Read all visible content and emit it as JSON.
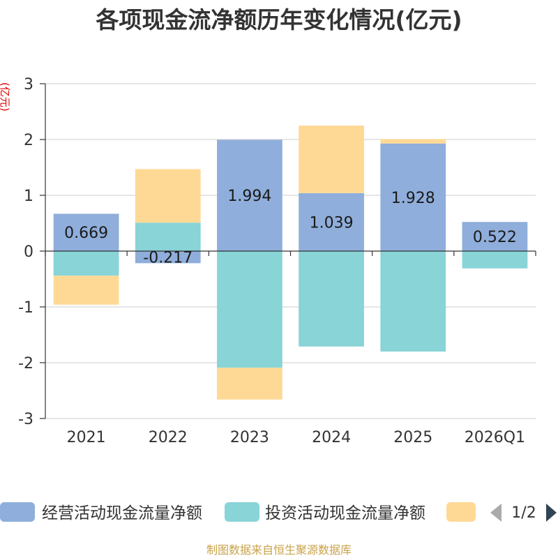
{
  "chart_data": {
    "type": "bar",
    "stacked": true,
    "title": "各项现金流净额历年变化情况(亿元)",
    "xlabel": "",
    "ylabel": "(亿元)",
    "categories": [
      "2021",
      "2022",
      "2023",
      "2024",
      "2025",
      "2026Q1"
    ],
    "ylim": [
      -3,
      3
    ],
    "yticks": [
      -3,
      -2,
      -1,
      0,
      1,
      2,
      3
    ],
    "grid": true,
    "legend_position": "bottom",
    "series": [
      {
        "name": "经营活动现金流量净额",
        "color": "#8faedb",
        "show_labels": true,
        "values": [
          0.669,
          -0.217,
          1.994,
          1.039,
          1.928,
          0.522
        ]
      },
      {
        "name": "投资活动现金流量净额",
        "color": "#88d4d7",
        "show_labels": false,
        "values": [
          -0.44,
          0.51,
          -2.09,
          -1.71,
          -1.8,
          -0.31
        ]
      },
      {
        "name": "",
        "color": "#fed996",
        "show_labels": false,
        "values": [
          -0.52,
          0.96,
          -0.57,
          1.21,
          0.08,
          null
        ]
      }
    ]
  },
  "legend": {
    "page": "1/2",
    "prev_icon": "triangle-left-icon",
    "next_icon": "triangle-right-icon"
  },
  "footer": "制图数据来自恒生聚源数据库"
}
